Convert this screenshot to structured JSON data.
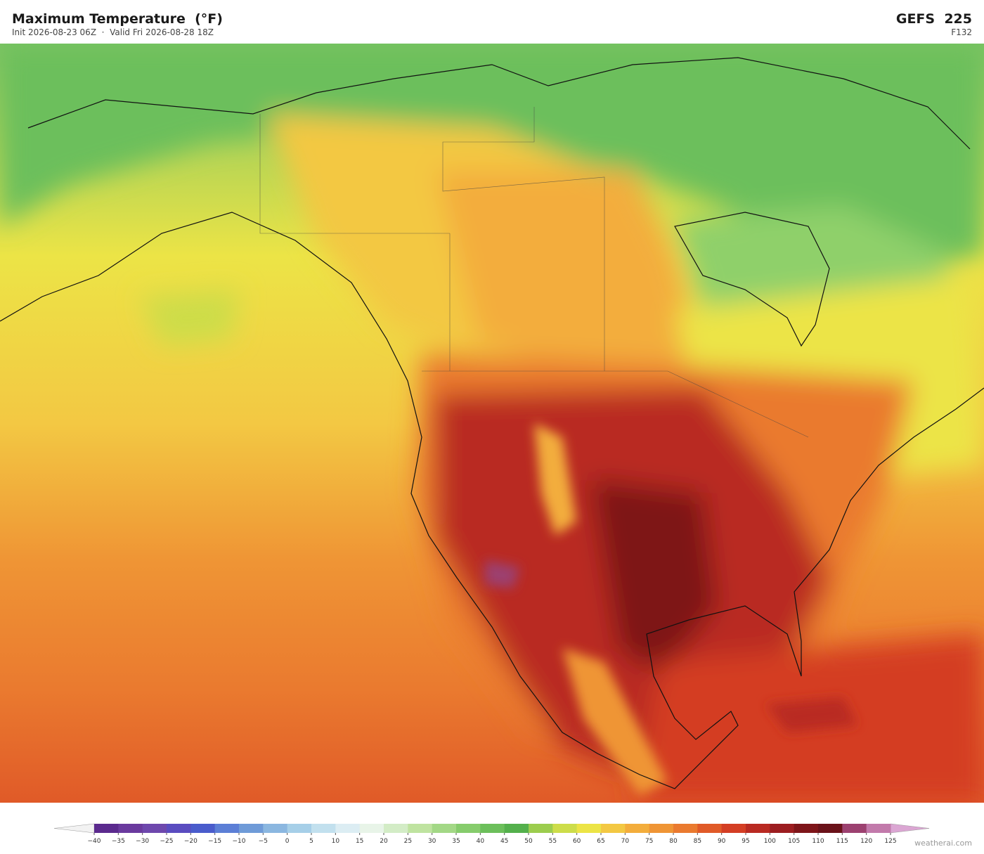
{
  "header": {
    "title": "Maximum Temperature  (°F)",
    "subtitle": "Init 2026-08-23 06Z  ·  Valid Fri 2026-08-28 18Z",
    "model": "GEFS  225",
    "forecast_hour": "F132"
  },
  "colorbar": {
    "ticks": [
      {
        "value": -40,
        "label": "−40"
      },
      {
        "value": -35,
        "label": "−35"
      },
      {
        "value": -30,
        "label": "−30"
      },
      {
        "value": -25,
        "label": "−25"
      },
      {
        "value": -20,
        "label": "−20"
      },
      {
        "value": -15,
        "label": "−15"
      },
      {
        "value": -10,
        "label": "−10"
      },
      {
        "value": -5,
        "label": "−5"
      },
      0,
      5,
      10,
      15,
      20,
      25,
      30,
      35,
      40,
      45,
      50,
      55,
      60,
      65,
      70,
      75,
      80,
      85,
      90,
      95,
      100,
      105,
      110,
      115,
      120,
      125
    ],
    "colors": [
      "#5b2a8e",
      "#6a3a9e",
      "#6e48ad",
      "#5a4cc0",
      "#4a5ccc",
      "#5c7fd6",
      "#6f9bd8",
      "#8bb7e0",
      "#a6cfe8",
      "#c2e0ee",
      "#dcedf3",
      "#e8f4e8",
      "#d3ecc6",
      "#bfe3a0",
      "#a3d886",
      "#86cc6c",
      "#6cbf5b",
      "#54b04c",
      "#9ccd4e",
      "#cddd4a",
      "#ece446",
      "#f3c843",
      "#f3ad3c",
      "#ef9535",
      "#ea7a2f",
      "#e05a28",
      "#d43e24",
      "#b92a22",
      "#9c1d20",
      "#7e1519",
      "#6a1219",
      "#9c4170",
      "#c27aab"
    ],
    "under_color": "#f2f2f2",
    "over_color": "#dba6d3"
  },
  "footer": {
    "credit": "weatherai.com"
  }
}
